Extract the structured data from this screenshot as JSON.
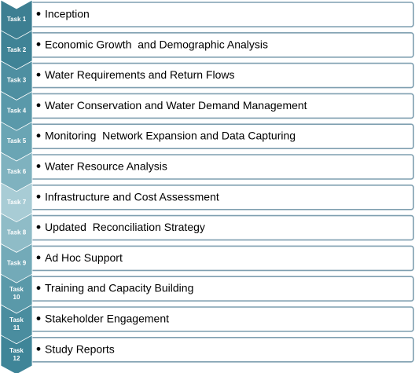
{
  "colors": {
    "border": "#7f9fb0",
    "box_fill": "#ffffff",
    "label_text": "#ffffff",
    "task_text": "#000000",
    "chevrons": [
      "#3d7f92",
      "#3f8396",
      "#4e8fa1",
      "#5a99aa",
      "#6aa5b4",
      "#7fb2bf",
      "#a8ccd5",
      "#8fbcc7",
      "#73aab8",
      "#5a99a9",
      "#4a8d9f",
      "#3f8598"
    ]
  },
  "tasks": [
    {
      "label": "Task 1",
      "text": "Inception"
    },
    {
      "label": "Task 2",
      "text": "Economic Growth  and Demographic Analysis"
    },
    {
      "label": "Task 3",
      "text": "Water Requirements and Return Flows"
    },
    {
      "label": "Task 4",
      "text": "Water Conservation and Water Demand Management"
    },
    {
      "label": "Task 5",
      "text": "Monitoring  Network Expansion and Data Capturing"
    },
    {
      "label": "Task 6",
      "text": "Water Resource Analysis"
    },
    {
      "label": "Task 7",
      "text": "Infrastructure and Cost Assessment"
    },
    {
      "label": "Task 8",
      "text": "Updated  Reconciliation Strategy"
    },
    {
      "label": "Task 9",
      "text": "Ad Hoc Support"
    },
    {
      "label": "Task 10",
      "text": "Training and Capacity Building"
    },
    {
      "label": "Task 11",
      "text": "Stakeholder Engagement"
    },
    {
      "label": "Task 12",
      "text": "Study Reports"
    }
  ]
}
